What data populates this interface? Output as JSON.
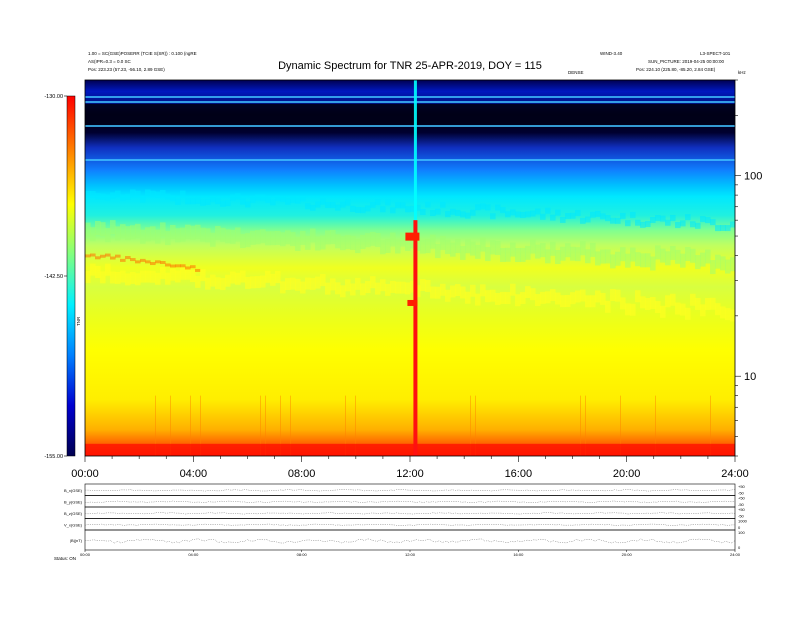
{
  "chart_data": [
    {
      "type": "heatmap",
      "title": "Dynamic Spectrum for TNR 25-APR-2019, DOY = 115",
      "x_unit": "UT time (hours)",
      "x_ticks": [
        {
          "value": 0,
          "label": "00:00"
        },
        {
          "value": 4,
          "label": "04:00"
        },
        {
          "value": 8,
          "label": "08:00"
        },
        {
          "value": 12,
          "label": "12:00"
        },
        {
          "value": 16,
          "label": "16:00"
        },
        {
          "value": 20,
          "label": "20:00"
        },
        {
          "value": 24,
          "label": "24:00"
        }
      ],
      "xlim": [
        0,
        24
      ],
      "y_scale": "log",
      "ylim": [
        4,
        300
      ],
      "y_ticks": [
        {
          "value": 10,
          "label": "10"
        },
        {
          "value": 100,
          "label": "100"
        }
      ],
      "colorbar": {
        "label": "TNR",
        "range": [
          -155,
          -130
        ],
        "ticks": [
          {
            "value": -130,
            "label": "-130.00"
          },
          {
            "value": -142.5,
            "label": "-142.50"
          },
          {
            "value": -155,
            "label": "-155.00"
          }
        ],
        "colors": [
          "#000050",
          "#0000d0",
          "#0080ff",
          "#00f0ff",
          "#80ff80",
          "#ffff00",
          "#ff8000",
          "#ff0000"
        ]
      },
      "header_left": [
        "1.00 = SC(GSE)POSERR (TCIE S(SR)) : 0.100 (ngRE",
        "AS(IPR=0.3 = 0.0 SC",
        "Pos:  223.23 (57.23, -56.10, 2.89 GSE)"
      ],
      "header_right": [
        "WIND-3.40",
        "SUN_PICTURE: 2019-04-25 00:00:00",
        "Pos:  224.10 (225.80, -85.20, 2.84 GSE)"
      ],
      "header_top_right": "L3-SPECT-101",
      "unit_label": "kHz",
      "center_label": "DENSE",
      "features": [
        {
          "name": "type III radio burst",
          "time": 12.2,
          "level": "max"
        },
        {
          "name": "bright emission band",
          "time_start": 0,
          "time_end": 24,
          "freq_khz": [
            20,
            60
          ]
        }
      ]
    },
    {
      "type": "line",
      "title": "",
      "panels": [
        {
          "name": "B_x(GSE)",
          "right_range": [
            "+50",
            "-50"
          ]
        },
        {
          "name": "B_y(GSE)",
          "right_range": [
            "+50",
            "-50"
          ]
        },
        {
          "name": "B_z(GSE)",
          "right_range": [
            "+50",
            "-50"
          ]
        },
        {
          "name": "V_x(GSE)",
          "right_range": [
            "1000",
            "0"
          ]
        },
        {
          "name": "|B|(nT)",
          "right_range": [
            "100",
            "0"
          ]
        }
      ],
      "x_ticks": [
        "00:00",
        "04:00",
        "08:00",
        "12:00",
        "16:00",
        "20:00",
        "24:00"
      ],
      "footer_label": "Status: ON"
    }
  ]
}
